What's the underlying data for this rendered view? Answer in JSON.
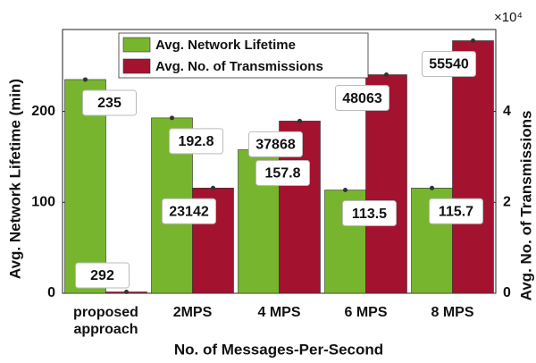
{
  "chart_data": {
    "type": "bar",
    "xlabel": "No. of Messages-Per-Second",
    "ylabel": "Avg. Network Lifetime (min)",
    "y2label": "Avg. No. of Transmissions",
    "y2_multiplier": "×10⁴",
    "categories": [
      "proposed approach",
      "2MPS",
      "4 MPS",
      "6 MPS",
      "8 MPS"
    ],
    "series": [
      {
        "name": "Avg. Network Lifetime",
        "color": "#77b52f",
        "values": [
          235,
          192.8,
          157.8,
          113.5,
          115.7
        ]
      },
      {
        "name": "Avg. No. of Transmissions",
        "color": "#a3122f",
        "axis": "y2",
        "values": [
          292,
          23142,
          37868,
          48063,
          55540
        ]
      }
    ],
    "ylim": [
      0,
      290
    ],
    "yticks": [
      0,
      100,
      200
    ],
    "y2lim": [
      0,
      58000
    ],
    "y2ticks": [
      {
        "value": 0,
        "label": "0"
      },
      {
        "value": 20000,
        "label": "2"
      },
      {
        "value": 40000,
        "label": "4"
      }
    ],
    "legend": "top"
  }
}
